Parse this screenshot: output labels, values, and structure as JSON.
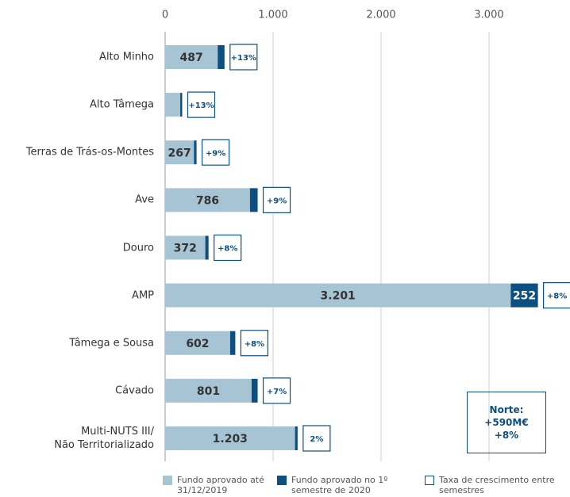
{
  "chart_data": {
    "type": "bar",
    "categories": [
      "Alto Minho",
      "Alto Tâmega",
      "Terras de Trás-os-Montes",
      "Ave",
      "Douro",
      "AMP",
      "Tâmega e Sousa",
      "Cávado",
      "Multi-NUTS III/\nNão Territorializado"
    ],
    "series": [
      {
        "name": "Fundo aprovado até 31/12/2019",
        "color": "#a7c4d4",
        "values": [
          487,
          140,
          267,
          786,
          372,
          3201,
          602,
          801,
          1203
        ],
        "value_labels": [
          "487",
          null,
          "267",
          "786",
          "372",
          "3.201",
          "602",
          "801",
          "1.203"
        ]
      },
      {
        "name": "Fundo aprovado no 1º semestre de 2020",
        "color": "#0d4f81",
        "values": [
          63,
          18,
          24,
          71,
          30,
          252,
          48,
          56,
          24
        ],
        "value_labels": [
          null,
          null,
          null,
          null,
          null,
          "252",
          null,
          null,
          null
        ]
      },
      {
        "name": "Taxa de crescimento entre semestres",
        "color": "#0d4f81",
        "values": [
          13,
          13,
          9,
          9,
          8,
          8,
          8,
          7,
          2
        ],
        "value_labels": [
          "+13%",
          "+13%",
          "+9%",
          "+9%",
          "+8%",
          "+8%",
          "+8%",
          "+7%",
          "2%"
        ]
      }
    ],
    "xlim": [
      0,
      3750
    ],
    "xticks": [
      0,
      {
        "value": 1000,
        "label": "1.000"
      },
      {
        "value": 2000,
        "label": "2.000"
      },
      {
        "value": 3000,
        "label": "3.000"
      }
    ],
    "grid": true,
    "annotation": [
      "Norte:",
      "+590M€",
      "+8%"
    ]
  }
}
